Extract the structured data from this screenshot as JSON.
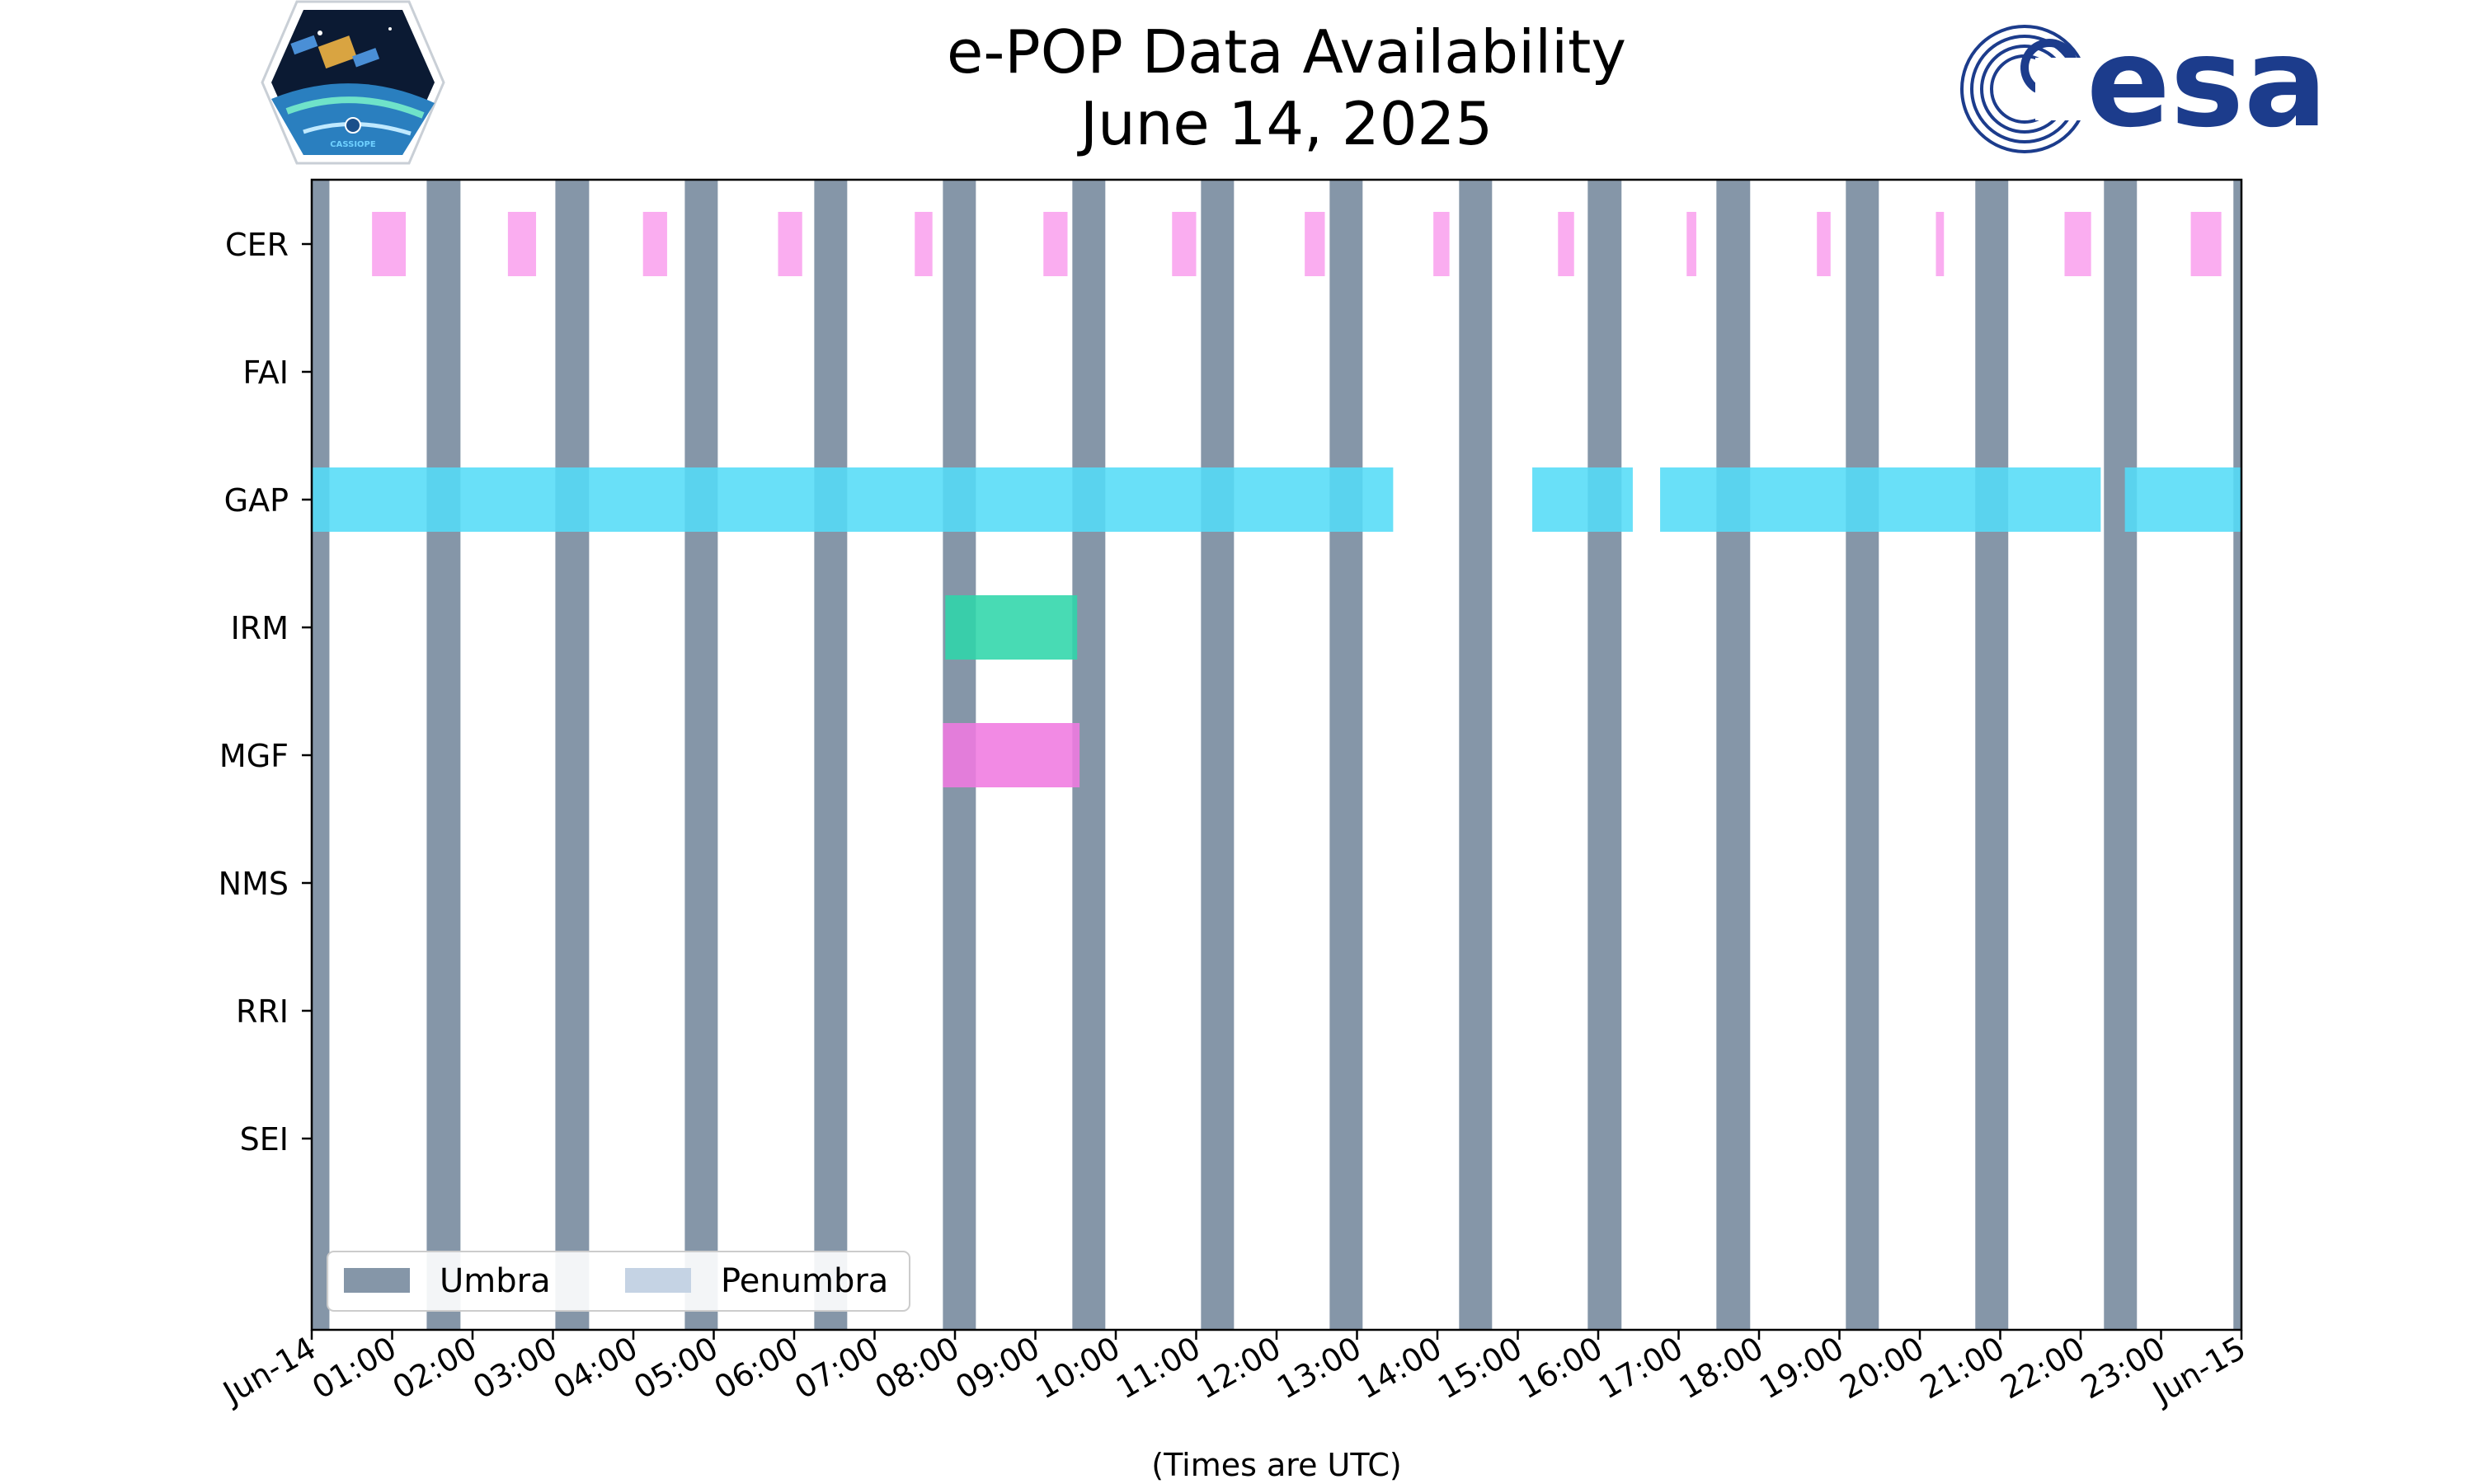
{
  "chart_data": {
    "type": "timeline",
    "title_lines": [
      "e-POP Data Availability",
      "June 14, 2025"
    ],
    "xlabel": "(Times are UTC)",
    "x_tick_labels": [
      "Jun-14",
      "01:00",
      "02:00",
      "03:00",
      "04:00",
      "05:00",
      "06:00",
      "07:00",
      "08:00",
      "09:00",
      "10:00",
      "11:00",
      "12:00",
      "13:00",
      "14:00",
      "15:00",
      "16:00",
      "17:00",
      "18:00",
      "19:00",
      "20:00",
      "21:00",
      "22:00",
      "23:00",
      "Jun-15"
    ],
    "xlim_hours": [
      0,
      24
    ],
    "instruments": [
      "CER",
      "FAI",
      "GAP",
      "IRM",
      "MGF",
      "NMS",
      "RRI",
      "SEI"
    ],
    "colors": {
      "umbra": "#8596a8",
      "penumbra": "#c5d3e4",
      "CER": "#f9a2ee",
      "GAP": "#54dcf7",
      "IRM": "#2fd6aa",
      "MGF": "#f07ae0"
    },
    "umbra_intervals": [
      [
        0.0,
        0.22
      ],
      [
        1.43,
        1.85
      ],
      [
        3.03,
        3.45
      ],
      [
        4.64,
        5.05
      ],
      [
        6.25,
        6.66
      ],
      [
        7.85,
        8.26
      ],
      [
        9.46,
        9.87
      ],
      [
        11.06,
        11.47
      ],
      [
        12.66,
        13.07
      ],
      [
        14.27,
        14.68
      ],
      [
        15.87,
        16.29
      ],
      [
        17.47,
        17.89
      ],
      [
        19.08,
        19.49
      ],
      [
        20.69,
        21.1
      ],
      [
        22.29,
        22.7
      ],
      [
        23.9,
        24.0
      ]
    ],
    "availability": {
      "CER": [
        [
          0.75,
          1.17
        ],
        [
          2.44,
          2.79
        ],
        [
          4.12,
          4.42
        ],
        [
          5.8,
          6.1
        ],
        [
          7.5,
          7.72
        ],
        [
          9.1,
          9.4
        ],
        [
          10.7,
          11.0
        ],
        [
          12.35,
          12.6
        ],
        [
          13.95,
          14.15
        ],
        [
          15.5,
          15.7
        ],
        [
          17.1,
          17.22
        ],
        [
          18.72,
          18.89
        ],
        [
          20.2,
          20.3
        ],
        [
          21.8,
          22.13
        ],
        [
          23.37,
          23.75
        ]
      ],
      "FAI": [],
      "GAP": [
        [
          0.0,
          13.45
        ],
        [
          15.18,
          16.43
        ],
        [
          16.77,
          22.25
        ],
        [
          22.55,
          24.0
        ]
      ],
      "IRM": [
        [
          7.88,
          9.52
        ]
      ],
      "MGF": [
        [
          7.85,
          9.55
        ]
      ],
      "NMS": [],
      "RRI": [],
      "SEI": []
    },
    "legend": {
      "position": "lower-left",
      "entries": [
        {
          "label": "Umbra",
          "color_key": "umbra"
        },
        {
          "label": "Penumbra",
          "color_key": "penumbra"
        }
      ]
    },
    "grid": false
  },
  "logos": {
    "left_caption": "CASSIOPE",
    "right_text": "esa"
  }
}
